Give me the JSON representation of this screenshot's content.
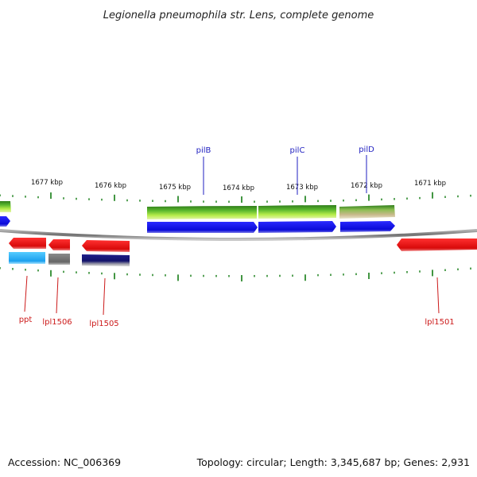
{
  "header": {
    "title": "Legionella pneumophila str. Lens, complete genome"
  },
  "footer": {
    "accession": "Accession: NC_006369",
    "summary": "Topology: circular; Length: 3,345,687 bp; Genes: 2,931"
  },
  "scale": {
    "unit": "kbp",
    "tick_labels": [
      "1677 kbp",
      "1676 kbp",
      "1675 kbp",
      "1674 kbp",
      "1673 kbp",
      "1672 kbp",
      "1671 kbp"
    ]
  },
  "genes_top": [
    {
      "label": "pilB",
      "color": "#1f1fc0"
    },
    {
      "label": "pilC",
      "color": "#1f1fc0"
    },
    {
      "label": "pilD",
      "color": "#1f1fc0"
    }
  ],
  "genes_bottom": [
    {
      "label": "ppt",
      "color": "#cc1a1a"
    },
    {
      "label": "lpl1506",
      "color": "#cc1a1a"
    },
    {
      "label": "lpl1505",
      "color": "#cc1a1a"
    },
    {
      "label": "lpl1501",
      "color": "#cc1a1a"
    }
  ],
  "colors": {
    "backbone": "#8a8a8a",
    "tick": "#2e8b2e",
    "forward_cds": "#1010e0",
    "reverse_cds": "#e01010",
    "green_feature": "#5cb82e",
    "cyan_feature": "#22aaee",
    "gray_feature": "#707070",
    "navy_feature": "#14147a"
  }
}
